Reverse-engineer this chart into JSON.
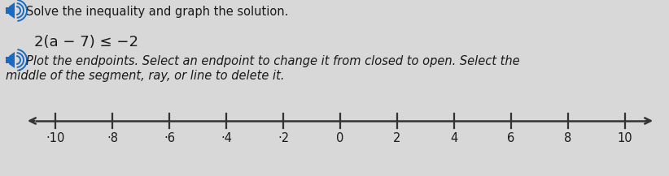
{
  "title_text": "Solve the inequality and graph the solution.",
  "inequality_text": "2(a − 7) ≤ −2",
  "instruction_line1": "Plot the endpoints. Select an endpoint to change it from closed to open. Select the",
  "instruction_line2": "middle of the segment, ray, or line to delete it.",
  "tick_labels": [
    -10,
    -8,
    -6,
    -4,
    -2,
    0,
    2,
    4,
    6,
    8,
    10
  ],
  "numberline_min": -10,
  "numberline_max": 10,
  "bg_color": "#d8d8d8",
  "text_color": "#1a1a1a",
  "blue_color": "#1a6abf",
  "axis_color": "#333333",
  "title_fontsize": 10.5,
  "ineq_fontsize": 13,
  "instr_fontsize": 10.5,
  "tick_fontsize": 10.5
}
